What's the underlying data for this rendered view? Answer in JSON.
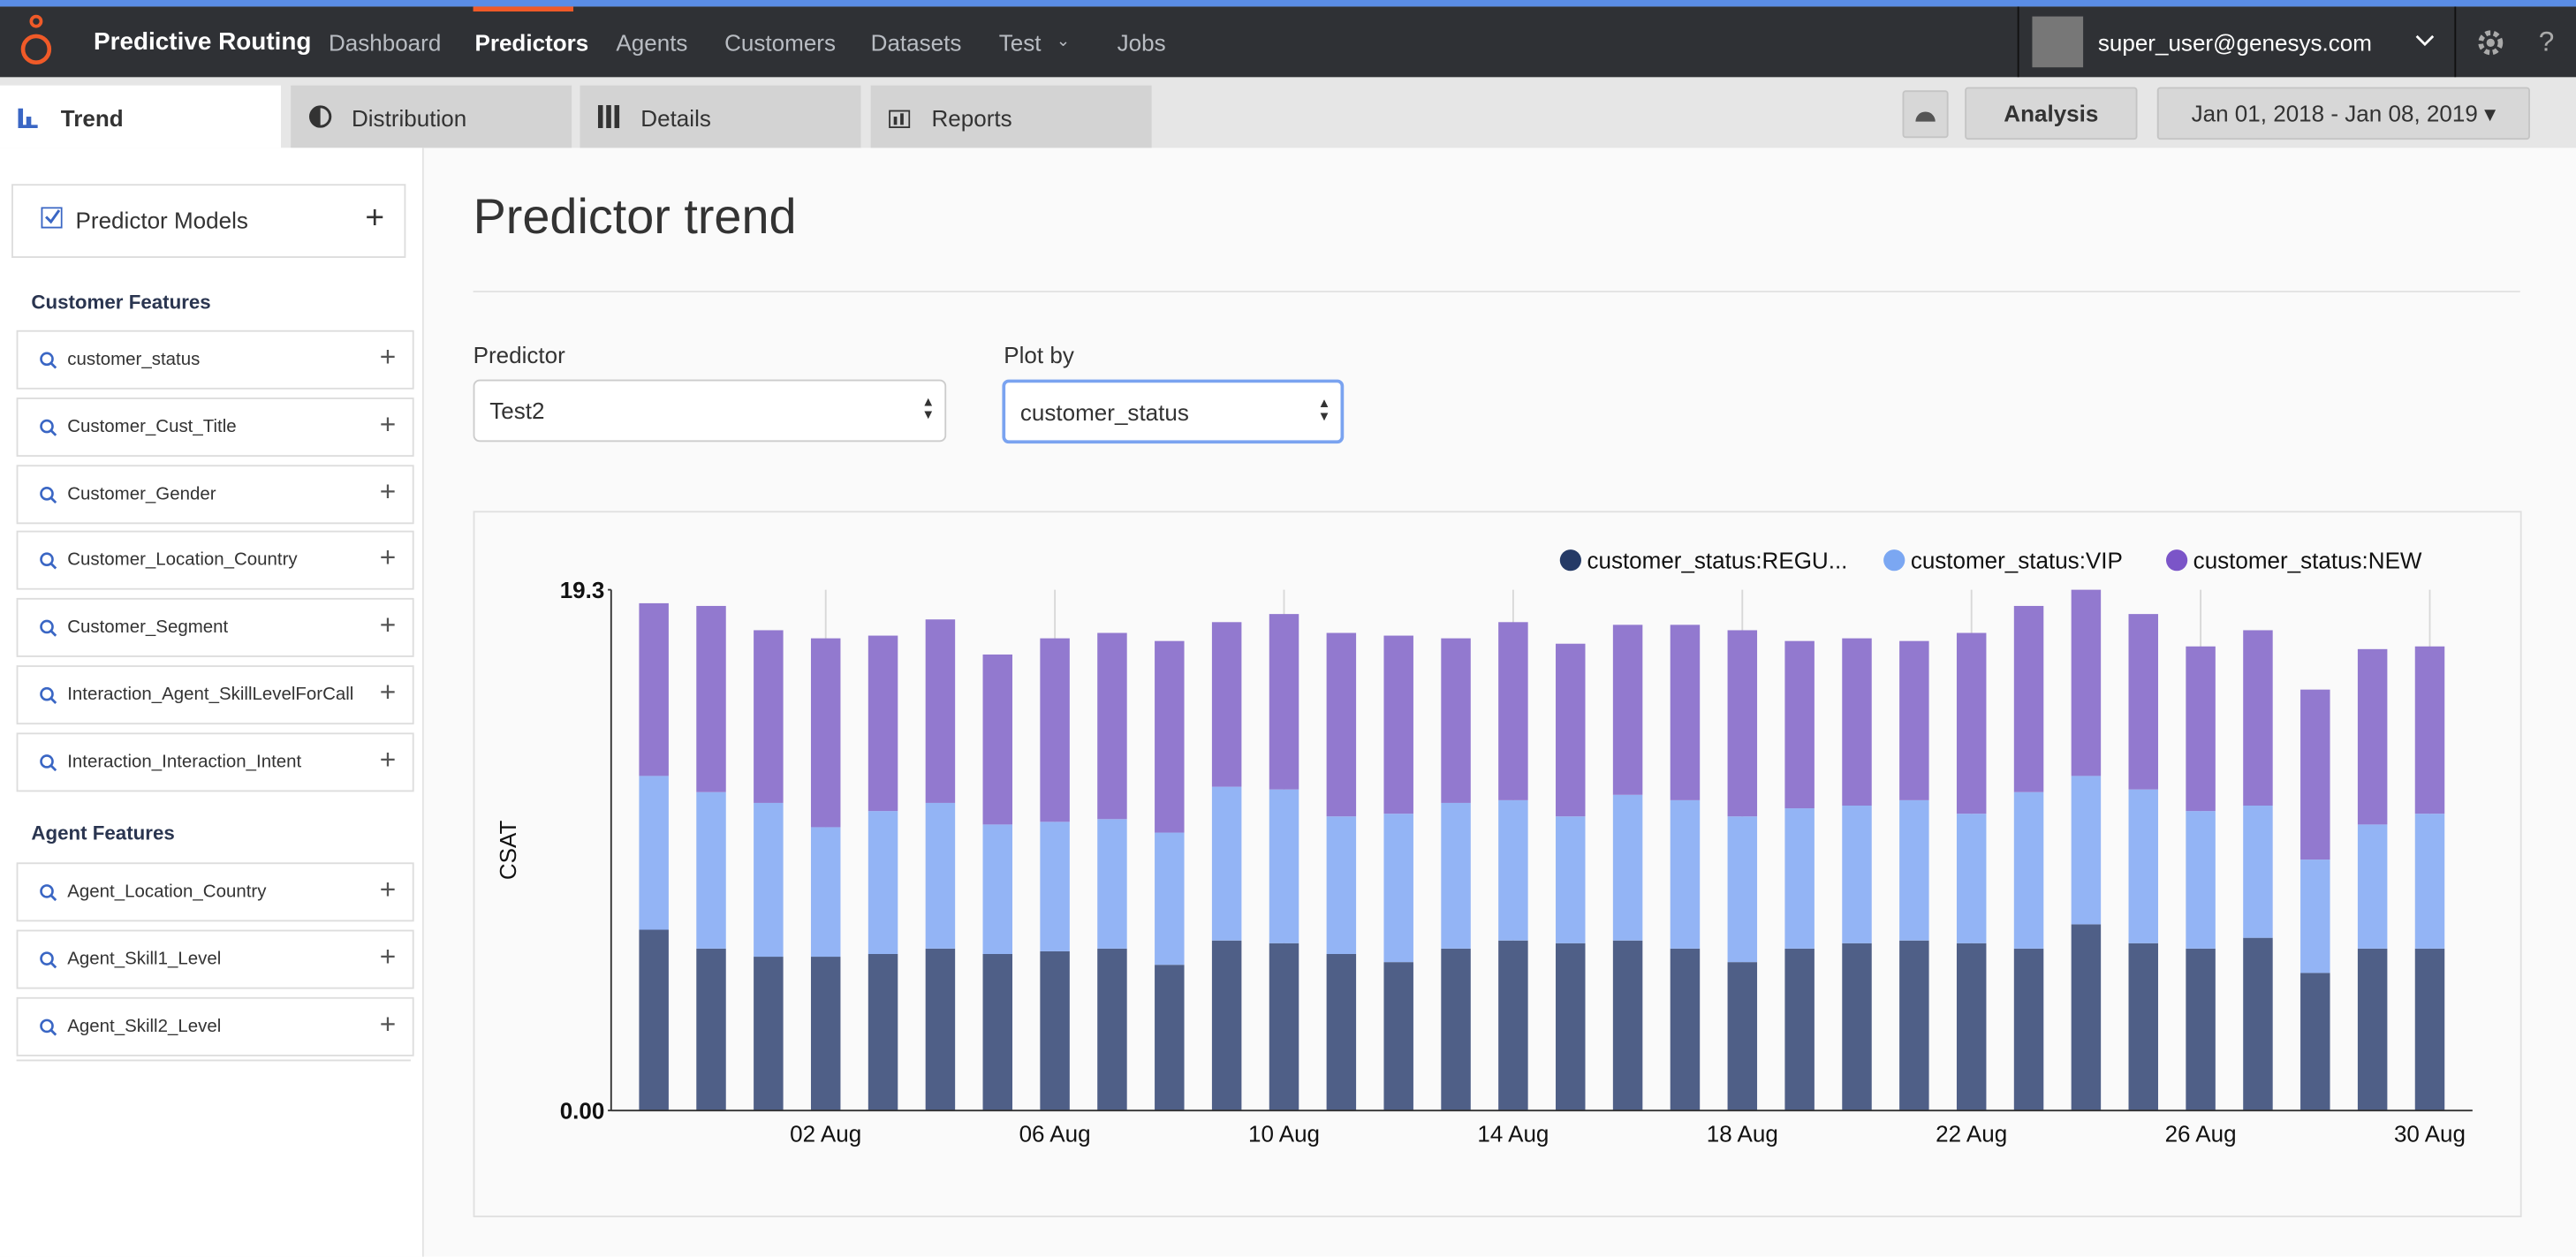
{
  "nav": {
    "brand": "Predictive Routing",
    "items": [
      "Dashboard",
      "Predictors",
      "Agents",
      "Customers",
      "Datasets",
      "Test",
      "Jobs"
    ],
    "user": "super_user@genesys.com"
  },
  "tabs": [
    "Trend",
    "Distribution",
    "Details",
    "Reports"
  ],
  "toolbar": {
    "analysis": "Analysis",
    "date_range": "Jan 01, 2018 - Jan 08, 2019"
  },
  "sidebar": {
    "models": "Predictor Models",
    "customer_features": {
      "title": "Customer Features",
      "items": [
        "customer_status",
        "Customer_Cust_Title",
        "Customer_Gender",
        "Customer_Location_Country",
        "Customer_Segment",
        "Interaction_Agent_SkillLevelForCall",
        "Interaction_Interaction_Intent"
      ]
    },
    "agent_features": {
      "title": "Agent Features",
      "items": [
        "Agent_Location_Country",
        "Agent_Skill1_Level",
        "Agent_Skill2_Level"
      ]
    }
  },
  "page": {
    "title": "Predictor trend",
    "predictor": {
      "label": "Predictor",
      "value": "Test2"
    },
    "plot_by": {
      "label": "Plot by",
      "value": "customer_status"
    }
  },
  "chart_data": {
    "type": "bar",
    "stacked": true,
    "ylabel": "CSAT",
    "legend": "top-right",
    "grid": "x",
    "categories": [
      null,
      null,
      null,
      "02 Aug",
      null,
      null,
      null,
      "06 Aug",
      null,
      null,
      null,
      "10 Aug",
      null,
      null,
      null,
      "14 Aug",
      null,
      null,
      null,
      "18 Aug",
      null,
      null,
      null,
      "22 Aug",
      null,
      null,
      null,
      "26 Aug",
      null,
      null,
      null,
      "30 Aug"
    ],
    "series": [
      {
        "name": "customer_status:REGU...",
        "color": "#4f5f87",
        "legend_color": "#253a66",
        "values": [
          6.7,
          6.0,
          5.7,
          5.7,
          5.8,
          6.0,
          5.8,
          5.9,
          6.0,
          5.4,
          6.3,
          6.2,
          5.8,
          5.5,
          6.0,
          6.3,
          6.2,
          6.3,
          6.0,
          5.5,
          6.0,
          6.2,
          6.3,
          6.2,
          6.0,
          6.9,
          6.2,
          6.0,
          6.4,
          5.1,
          6.0,
          6.0
        ]
      },
      {
        "name": "customer_status:VIP",
        "color": "#93b4f5",
        "legend_color": "#7ba7f2",
        "values": [
          5.7,
          5.8,
          5.7,
          4.8,
          5.3,
          5.4,
          4.8,
          4.8,
          4.8,
          4.9,
          5.7,
          5.7,
          5.1,
          5.5,
          5.4,
          5.2,
          4.7,
          5.4,
          5.5,
          5.4,
          5.2,
          5.1,
          5.2,
          4.8,
          5.8,
          5.5,
          5.7,
          5.1,
          4.9,
          4.2,
          4.6,
          5.0
        ]
      },
      {
        "name": "customer_status:NEW",
        "color": "#9279cf",
        "legend_color": "#7b55c8",
        "values": [
          6.4,
          6.9,
          6.4,
          7.0,
          6.5,
          6.8,
          6.3,
          6.8,
          6.9,
          7.1,
          6.1,
          6.5,
          6.8,
          6.6,
          6.1,
          6.6,
          6.4,
          6.3,
          6.5,
          6.9,
          6.2,
          6.2,
          5.9,
          6.7,
          6.9,
          6.9,
          6.5,
          6.1,
          6.5,
          6.3,
          6.5,
          6.2
        ]
      }
    ],
    "ylim": [
      0,
      19.3
    ],
    "yticks": [
      {
        "value": 0,
        "label": "0.00"
      },
      19.3
    ]
  }
}
